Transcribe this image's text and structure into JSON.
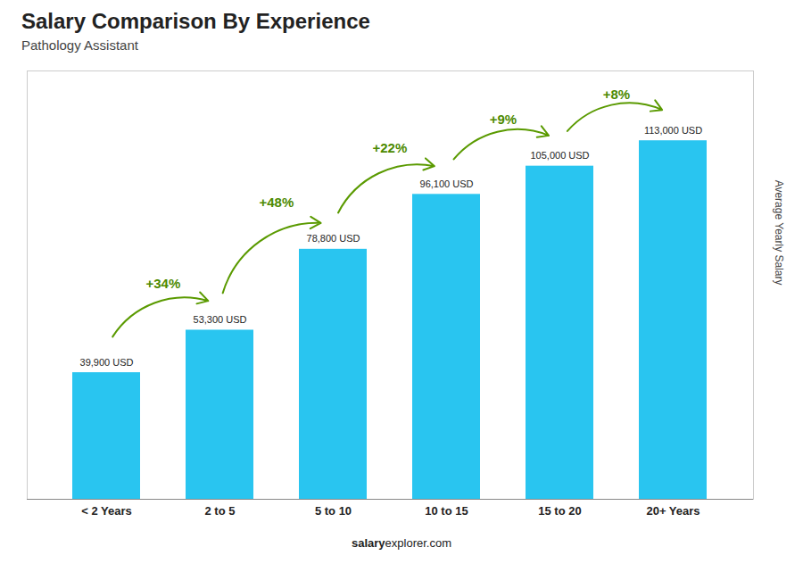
{
  "chart_data": {
    "type": "bar",
    "title": "Salary Comparison By Experience",
    "subtitle": "Pathology Assistant",
    "categories": [
      "< 2 Years",
      "2 to 5",
      "5 to 10",
      "10 to 15",
      "15 to 20",
      "20+ Years"
    ],
    "values": [
      39900,
      53300,
      78800,
      96100,
      105000,
      113000
    ],
    "value_labels": [
      "39,900 USD",
      "53,300 USD",
      "78,800 USD",
      "96,100 USD",
      "105,000 USD",
      "113,000 USD"
    ],
    "data_labels": true,
    "color": "#29c5f0",
    "ylabel": "Average Yearly Salary",
    "ylim": [
      0,
      135000
    ],
    "tick_labels": "x",
    "annotations": [
      "+34%",
      "+48%",
      "+22%",
      "+9%",
      "+8%"
    ],
    "footer": [
      "salary",
      "explorer.com"
    ]
  }
}
